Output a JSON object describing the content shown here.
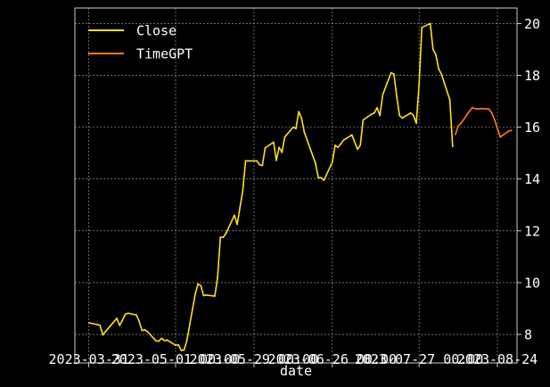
{
  "chart_data": {
    "type": "line",
    "title": "",
    "xlabel": "date",
    "ylabel": "",
    "ylim": [
      6.9,
      20.6
    ],
    "xlim": [
      "2023-03-26",
      "2023-08-31"
    ],
    "grid": true,
    "legend_position": "top-left",
    "x_ticks": [
      {
        "date": "2023-03-31",
        "label": "2023-03-31"
      },
      {
        "date": "2023-05-01",
        "label": "2023-05-01 00:00"
      },
      {
        "date": "2023-05-29",
        "label": "2023-05-29 00:00"
      },
      {
        "date": "2023-06-26",
        "label": "2023-06-26 00:00"
      },
      {
        "date": "2023-07-27",
        "label": "2023-07-27 00:00"
      },
      {
        "date": "2023-08-24",
        "label": "2023-08-24"
      }
    ],
    "y_ticks": [
      8,
      10,
      12,
      14,
      16,
      18,
      20
    ],
    "series": [
      {
        "name": "Close",
        "color": "#ffe119",
        "points": [
          [
            "2023-03-31",
            8.45
          ],
          [
            "2023-04-03",
            8.38
          ],
          [
            "2023-04-04",
            8.35
          ],
          [
            "2023-04-05",
            7.98
          ],
          [
            "2023-04-06",
            8.12
          ],
          [
            "2023-04-10",
            8.62
          ],
          [
            "2023-04-11",
            8.35
          ],
          [
            "2023-04-12",
            8.55
          ],
          [
            "2023-04-13",
            8.78
          ],
          [
            "2023-04-14",
            8.82
          ],
          [
            "2023-04-17",
            8.75
          ],
          [
            "2023-04-18",
            8.5
          ],
          [
            "2023-04-19",
            8.15
          ],
          [
            "2023-04-20",
            8.18
          ],
          [
            "2023-04-21",
            8.1
          ],
          [
            "2023-04-24",
            7.75
          ],
          [
            "2023-04-25",
            7.74
          ],
          [
            "2023-04-26",
            7.85
          ],
          [
            "2023-04-27",
            7.76
          ],
          [
            "2023-04-28",
            7.78
          ],
          [
            "2023-05-01",
            7.58
          ],
          [
            "2023-05-02",
            7.6
          ],
          [
            "2023-05-03",
            7.38
          ],
          [
            "2023-05-04",
            7.4
          ],
          [
            "2023-05-05",
            7.75
          ],
          [
            "2023-05-08",
            9.55
          ],
          [
            "2023-05-09",
            9.95
          ],
          [
            "2023-05-10",
            9.88
          ],
          [
            "2023-05-11",
            9.5
          ],
          [
            "2023-05-12",
            9.52
          ],
          [
            "2023-05-15",
            9.48
          ],
          [
            "2023-05-16",
            10.2
          ],
          [
            "2023-05-17",
            11.75
          ],
          [
            "2023-05-18",
            11.75
          ],
          [
            "2023-05-19",
            11.9
          ],
          [
            "2023-05-22",
            12.6
          ],
          [
            "2023-05-23",
            12.25
          ],
          [
            "2023-05-24",
            12.9
          ],
          [
            "2023-05-25",
            13.55
          ],
          [
            "2023-05-26",
            14.7
          ],
          [
            "2023-05-30",
            14.7
          ],
          [
            "2023-05-31",
            14.55
          ],
          [
            "2023-06-01",
            14.52
          ],
          [
            "2023-06-02",
            15.2
          ],
          [
            "2023-06-05",
            15.42
          ],
          [
            "2023-06-06",
            14.72
          ],
          [
            "2023-06-07",
            15.22
          ],
          [
            "2023-06-08",
            15.03
          ],
          [
            "2023-06-09",
            15.62
          ],
          [
            "2023-06-12",
            16.0
          ],
          [
            "2023-06-13",
            15.95
          ],
          [
            "2023-06-14",
            16.6
          ],
          [
            "2023-06-15",
            16.35
          ],
          [
            "2023-06-16",
            15.8
          ],
          [
            "2023-06-20",
            14.6
          ],
          [
            "2023-06-21",
            14.05
          ],
          [
            "2023-06-22",
            14.05
          ],
          [
            "2023-06-23",
            13.95
          ],
          [
            "2023-06-26",
            14.65
          ],
          [
            "2023-06-27",
            15.3
          ],
          [
            "2023-06-28",
            15.22
          ],
          [
            "2023-06-29",
            15.35
          ],
          [
            "2023-06-30",
            15.5
          ],
          [
            "2023-07-03",
            15.7
          ],
          [
            "2023-07-05",
            15.15
          ],
          [
            "2023-07-06",
            15.3
          ],
          [
            "2023-07-07",
            16.28
          ],
          [
            "2023-07-10",
            16.5
          ],
          [
            "2023-07-11",
            16.55
          ],
          [
            "2023-07-12",
            16.75
          ],
          [
            "2023-07-13",
            16.45
          ],
          [
            "2023-07-14",
            17.25
          ],
          [
            "2023-07-17",
            18.1
          ],
          [
            "2023-07-18",
            18.05
          ],
          [
            "2023-07-19",
            17.2
          ],
          [
            "2023-07-20",
            16.45
          ],
          [
            "2023-07-21",
            16.35
          ],
          [
            "2023-07-24",
            16.55
          ],
          [
            "2023-07-25",
            16.45
          ],
          [
            "2023-07-26",
            16.15
          ],
          [
            "2023-07-27",
            17.65
          ],
          [
            "2023-07-28",
            19.85
          ],
          [
            "2023-07-31",
            20.0
          ],
          [
            "2023-08-01",
            19.0
          ],
          [
            "2023-08-02",
            18.8
          ],
          [
            "2023-08-03",
            18.25
          ],
          [
            "2023-08-04",
            18.05
          ],
          [
            "2023-08-07",
            17.05
          ],
          [
            "2023-08-08",
            15.25
          ]
        ]
      },
      {
        "name": "TimeGPT",
        "color": "#ff7f0e",
        "points": [
          [
            "2023-08-09",
            15.72
          ],
          [
            "2023-08-10",
            16.05
          ],
          [
            "2023-08-11",
            16.15
          ],
          [
            "2023-08-14",
            16.62
          ],
          [
            "2023-08-15",
            16.75
          ],
          [
            "2023-08-16",
            16.72
          ],
          [
            "2023-08-17",
            16.7
          ],
          [
            "2023-08-18",
            16.72
          ],
          [
            "2023-08-21",
            16.7
          ],
          [
            "2023-08-22",
            16.55
          ],
          [
            "2023-08-23",
            16.28
          ],
          [
            "2023-08-24",
            15.95
          ],
          [
            "2023-08-25",
            15.62
          ],
          [
            "2023-08-28",
            15.85
          ],
          [
            "2023-08-29",
            15.88
          ]
        ]
      }
    ]
  }
}
